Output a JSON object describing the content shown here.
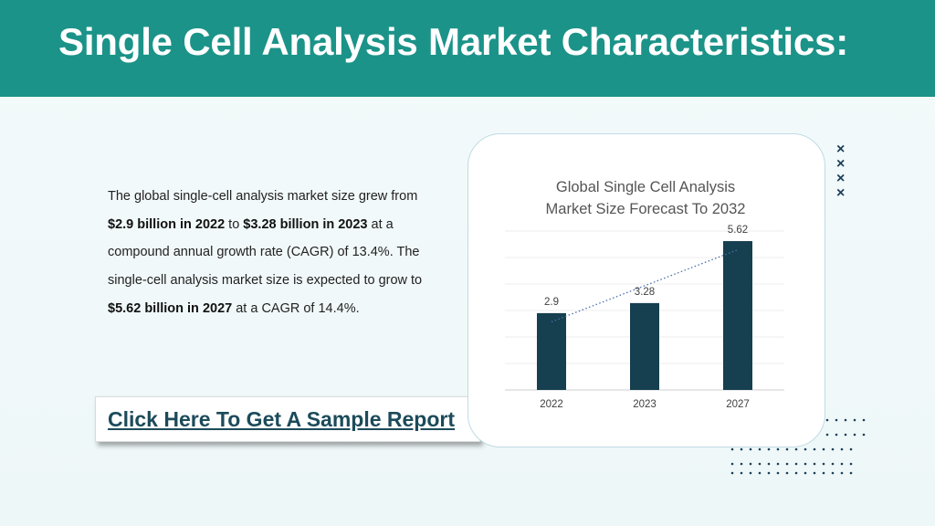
{
  "header": {
    "title": "Single Cell Analysis Market Characteristics:"
  },
  "body": {
    "p1": "The global single-cell analysis market size grew from ",
    "b1": "$2.9 billion in 2022",
    "p2": " to ",
    "b2": "$3.28 billion in 2023",
    "p3": " at a compound annual growth rate (CAGR) of 13.4%. The single-cell analysis market size is expected to grow to ",
    "b3": "$5.62 billion in 2027",
    "p4": " at a CAGR of 14.4%."
  },
  "cta": {
    "label": "Click Here To Get A Sample Report"
  },
  "colors": {
    "header": "#1b9389",
    "bar": "#163f4f",
    "cta_text": "#1c4b5a",
    "trend": "#4a6fae"
  },
  "chart_data": {
    "type": "bar",
    "title_lines": [
      "Global Single Cell Analysis",
      "Market Size Forecast To 2032"
    ],
    "categories": [
      "2022",
      "2023",
      "2027"
    ],
    "values": [
      2.9,
      3.28,
      5.62
    ],
    "data_labels": [
      "2.9",
      "3.28",
      "5.62"
    ],
    "ylim": [
      0,
      6
    ],
    "grid": true,
    "trendline": "linear, dotted",
    "legend": "none"
  },
  "decor": {
    "x_marks": [
      "×",
      "×",
      "×",
      "×"
    ]
  }
}
